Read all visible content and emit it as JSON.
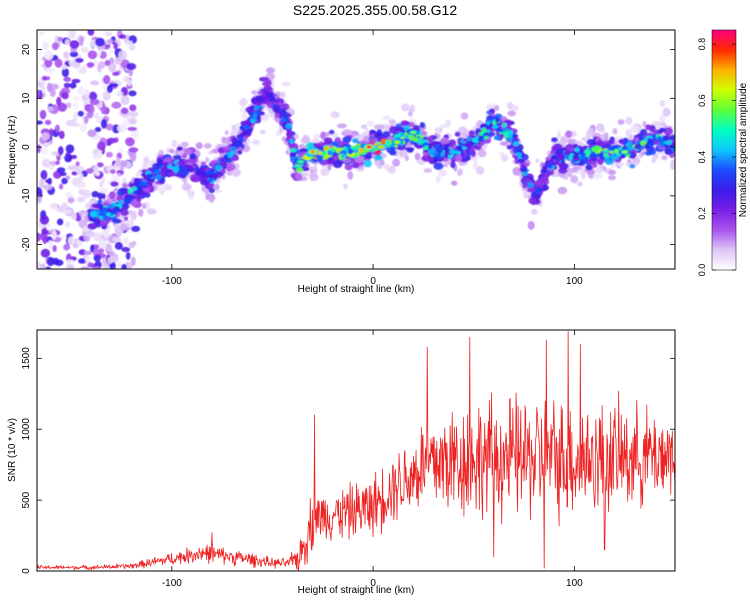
{
  "figure_title": "S225.2025.355.00.58.G12",
  "colors": {
    "line": "#ee2222",
    "axis": "#000000",
    "colormap": [
      "#ffffff",
      "#ddc6f7",
      "#aa55ee",
      "#7a1ee6",
      "#3a1ee8",
      "#1a4cff",
      "#10c8ff",
      "#00ffc0",
      "#5cff3a",
      "#cfff00",
      "#ffb000",
      "#ff2a00",
      "#ff0080"
    ]
  },
  "chart_data": [
    {
      "type": "heatmap",
      "title": "",
      "xlabel": "Height of straight line (km)",
      "ylabel": "Frequency (Hz)",
      "xlim": [
        -167,
        150
      ],
      "ylim": [
        -25,
        24
      ],
      "xticks": [
        -100,
        0,
        100
      ],
      "yticks": [
        -20,
        -10,
        0,
        10,
        20
      ],
      "colorbar": {
        "label": "Normalized spectral amplitude",
        "range": [
          0.0,
          0.85
        ],
        "ticks": [
          "0.0",
          "0.2",
          "0.4",
          "0.6",
          "0.8"
        ],
        "tick_values": [
          0.0,
          0.2,
          0.4,
          0.6,
          0.8
        ]
      },
      "ridge": [
        {
          "x": -140,
          "y": -14,
          "a": 0.45
        },
        {
          "x": -130,
          "y": -13,
          "a": 0.5
        },
        {
          "x": -120,
          "y": -10,
          "a": 0.45
        },
        {
          "x": -110,
          "y": -6,
          "a": 0.4
        },
        {
          "x": -100,
          "y": -4,
          "a": 0.4
        },
        {
          "x": -90,
          "y": -4,
          "a": 0.4
        },
        {
          "x": -80,
          "y": -6,
          "a": 0.4
        },
        {
          "x": -70,
          "y": -1,
          "a": 0.4
        },
        {
          "x": -60,
          "y": 6,
          "a": 0.4
        },
        {
          "x": -52,
          "y": 12,
          "a": 0.3
        },
        {
          "x": -48,
          "y": 8,
          "a": 0.35
        },
        {
          "x": -43,
          "y": 6,
          "a": 0.35
        },
        {
          "x": -38,
          "y": -4,
          "a": 0.5
        },
        {
          "x": -30,
          "y": -1,
          "a": 0.75
        },
        {
          "x": -20,
          "y": -1,
          "a": 0.6
        },
        {
          "x": -10,
          "y": -1,
          "a": 0.6
        },
        {
          "x": 0,
          "y": 0,
          "a": 0.8
        },
        {
          "x": 10,
          "y": 1,
          "a": 0.7
        },
        {
          "x": 20,
          "y": 3,
          "a": 0.6
        },
        {
          "x": 30,
          "y": -1,
          "a": 0.5
        },
        {
          "x": 40,
          "y": -1,
          "a": 0.45
        },
        {
          "x": 50,
          "y": 1,
          "a": 0.45
        },
        {
          "x": 60,
          "y": 5,
          "a": 0.55
        },
        {
          "x": 70,
          "y": 2,
          "a": 0.45
        },
        {
          "x": 75,
          "y": -5,
          "a": 0.4
        },
        {
          "x": 80,
          "y": -10,
          "a": 0.35
        },
        {
          "x": 90,
          "y": -2,
          "a": 0.4
        },
        {
          "x": 100,
          "y": -2,
          "a": 0.45
        },
        {
          "x": 110,
          "y": -1,
          "a": 0.55
        },
        {
          "x": 120,
          "y": -1,
          "a": 0.6
        },
        {
          "x": 130,
          "y": 0,
          "a": 0.55
        },
        {
          "x": 140,
          "y": 2,
          "a": 0.5
        },
        {
          "x": 150,
          "y": 0,
          "a": 0.4
        }
      ],
      "hotspots": [
        {
          "x": -30,
          "y": -1,
          "a": 0.75
        },
        {
          "x": -2,
          "y": 0,
          "a": 0.82
        },
        {
          "x": 4,
          "y": 0,
          "a": 0.7
        },
        {
          "x": 12,
          "y": 1,
          "a": 0.65
        },
        {
          "x": 20,
          "y": 3,
          "a": 0.6
        },
        {
          "x": 125,
          "y": -1,
          "a": 0.62
        },
        {
          "x": -36,
          "y": -3,
          "a": 0.55
        }
      ],
      "scatter_region": {
        "xmin": -167,
        "xmax": -118,
        "ymin": -25,
        "ymax": 24,
        "a": 0.3
      }
    },
    {
      "type": "line",
      "title": "",
      "xlabel": "Height of straight line (km)",
      "ylabel": "SNR (10 * v/v)",
      "xlim": [
        -167,
        150
      ],
      "ylim": [
        0,
        1700
      ],
      "xticks": [
        -100,
        0,
        100
      ],
      "yticks": [
        0,
        500,
        1000,
        1500
      ],
      "series": [
        {
          "name": "SNR",
          "envelope_x": [
            -167,
            -140,
            -120,
            -110,
            -95,
            -85,
            -75,
            -60,
            -50,
            -42,
            -36,
            -32,
            -28,
            -20,
            -10,
            0,
            10,
            20,
            25,
            40,
            60,
            80,
            100,
            120,
            140,
            150
          ],
          "envelope_mean": [
            25,
            25,
            35,
            60,
            100,
            130,
            110,
            80,
            55,
            55,
            110,
            300,
            380,
            400,
            420,
            460,
            600,
            680,
            750,
            780,
            800,
            800,
            790,
            800,
            820,
            820
          ],
          "envelope_amp": [
            15,
            15,
            20,
            35,
            50,
            70,
            60,
            50,
            35,
            35,
            130,
            220,
            170,
            180,
            200,
            220,
            250,
            300,
            350,
            420,
            430,
            450,
            420,
            400,
            330,
            320
          ],
          "peaks": [
            {
              "x": -80,
              "y": 270
            },
            {
              "x": -29,
              "y": 1100
            },
            {
              "x": 27,
              "y": 1580
            },
            {
              "x": 48,
              "y": 1650
            },
            {
              "x": 86,
              "y": 1630
            },
            {
              "x": 97,
              "y": 1690
            },
            {
              "x": 103,
              "y": 1600
            }
          ],
          "min_samples": [
            {
              "x": 60,
              "y": 100
            },
            {
              "x": 85,
              "y": 20
            },
            {
              "x": 115,
              "y": 150
            }
          ]
        }
      ]
    }
  ]
}
